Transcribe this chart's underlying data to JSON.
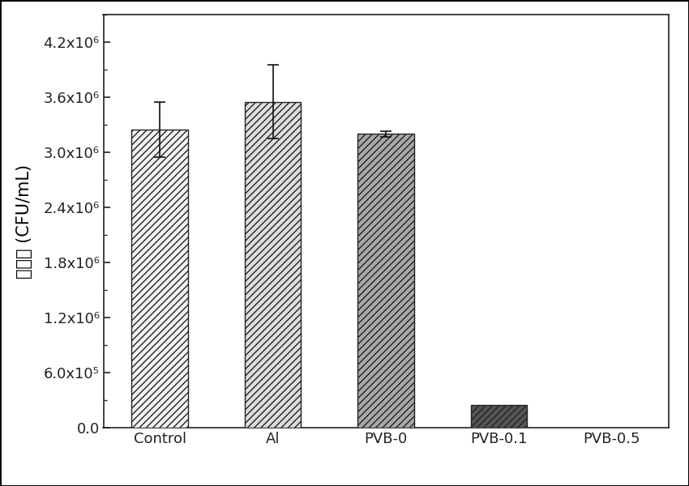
{
  "categories": [
    "Control",
    "Al",
    "PVB-0",
    "PVB-0.1",
    "PVB-0.5"
  ],
  "values": [
    3250000.0,
    3550000.0,
    3200000.0,
    250000.0,
    0.0
  ],
  "errors": [
    300000.0,
    400000.0,
    30000.0,
    0.0,
    0.0
  ],
  "bar_face_colors": [
    "#f2f2f2",
    "#dedede",
    "#a8a8a8",
    "#555555",
    "#555555"
  ],
  "bar_edge_colors": [
    "#222222",
    "#222222",
    "#222222",
    "#222222",
    "#222222"
  ],
  "hatch_patterns": [
    "////",
    "////",
    "////",
    "////",
    ""
  ],
  "ylabel": "菌落数 (CFU/mL)",
  "ylim": [
    0,
    4500000.0
  ],
  "yticks": [
    0.0,
    600000.0,
    1200000.0,
    1800000.0,
    2400000.0,
    3000000.0,
    3600000.0,
    4200000.0
  ],
  "ytick_labels": [
    "0.0",
    "6.0x10⁵",
    "1.2x10⁶",
    "1.8x10⁶",
    "2.4x10⁶",
    "3.0x10⁶",
    "3.6x10⁶",
    "4.2x10⁶"
  ],
  "background_color": "#ffffff",
  "bar_width": 0.5,
  "figsize": [
    8.5,
    6.0
  ],
  "dpi": 100,
  "tick_font_size": 13,
  "label_font_size": 15,
  "outer_border": true
}
